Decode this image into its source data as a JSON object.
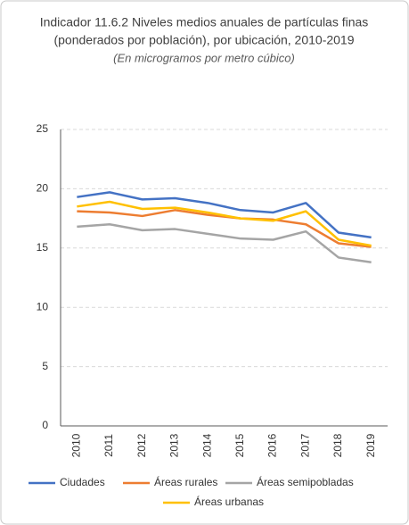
{
  "chart_data": {
    "type": "line",
    "title": [
      "Indicador 11.6.2 Niveles medios anuales de partículas finas",
      "(ponderados por población), por ubicación, 2010-2019"
    ],
    "subtitle": "(En microgramos por metro cúbico)",
    "categories": [
      "2010",
      "2011",
      "2012",
      "2013",
      "2014",
      "2015",
      "2016",
      "2017",
      "2018",
      "2019"
    ],
    "series": [
      {
        "name": "Ciudades",
        "color": "#4472c4",
        "values": [
          19.3,
          19.7,
          19.1,
          19.2,
          18.8,
          18.2,
          18.0,
          18.8,
          16.3,
          15.9
        ]
      },
      {
        "name": "Áreas rurales",
        "color": "#ed7d31",
        "values": [
          18.1,
          18.0,
          17.7,
          18.2,
          17.8,
          17.5,
          17.4,
          17.0,
          15.4,
          15.1
        ]
      },
      {
        "name": "Áreas semipobladas",
        "color": "#a5a5a5",
        "values": [
          16.8,
          17.0,
          16.5,
          16.6,
          16.2,
          15.8,
          15.7,
          16.4,
          14.2,
          13.8
        ]
      },
      {
        "name": "Áreas urbanas",
        "color": "#ffc000",
        "values": [
          18.5,
          18.9,
          18.3,
          18.4,
          18.0,
          17.5,
          17.3,
          18.1,
          15.7,
          15.2
        ]
      }
    ],
    "ylim": [
      0,
      25
    ],
    "yticks": [
      0,
      5,
      10,
      15,
      20,
      25
    ],
    "grid": true,
    "legend": "bottom"
  }
}
